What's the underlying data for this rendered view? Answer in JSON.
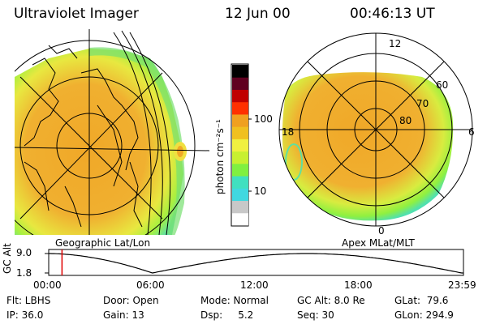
{
  "header": {
    "instrument": "Ultraviolet Imager",
    "date": "12 Jun 00",
    "time": "00:46:13 UT"
  },
  "colorbar": {
    "unit_label": "photon cm⁻²s⁻¹",
    "tick_labels": [
      "100",
      "10"
    ],
    "ticks": [
      100,
      10
    ],
    "range": [
      2.5,
      600
    ],
    "colors": [
      "#ffffff",
      "#c8c8c8",
      "#40d8e0",
      "#40e0c0",
      "#80f040",
      "#c8f030",
      "#f0f040",
      "#f0c020",
      "#f0a020",
      "#ff3000",
      "#c00000",
      "#600020",
      "#000000"
    ]
  },
  "left_panel": {
    "label": "Geographic Lat/Lon"
  },
  "right_panel": {
    "label": "Apex MLat/MLT",
    "mlt_labels": [
      "12",
      "18",
      "6",
      "0"
    ],
    "lat_labels": [
      "60",
      "70",
      "80"
    ]
  },
  "timeline": {
    "ylabel": "GC Alt",
    "y_ticks": [
      "9.0",
      "1.8"
    ],
    "x_ticks": [
      "00:00",
      "06:00",
      "12:00",
      "18:00",
      "23:59"
    ],
    "current_time_hours": 0.77,
    "orbit_min_hours": [
      6.0,
      23.9
    ],
    "curve_color": "#000000",
    "marker_color": "#e00000"
  },
  "status": {
    "flt": "Flt: LBHS",
    "ip": "IP: 36.0",
    "door": "Door: Open",
    "gain": "Gain: 13",
    "mode": "Mode: Normal",
    "dsp": "Dsp:     5.2",
    "gc_alt": "GC Alt: 8.0 Re",
    "seq": "Seq: 30",
    "glat": "GLat:  79.6",
    "glon": "GLon: 294.9"
  }
}
